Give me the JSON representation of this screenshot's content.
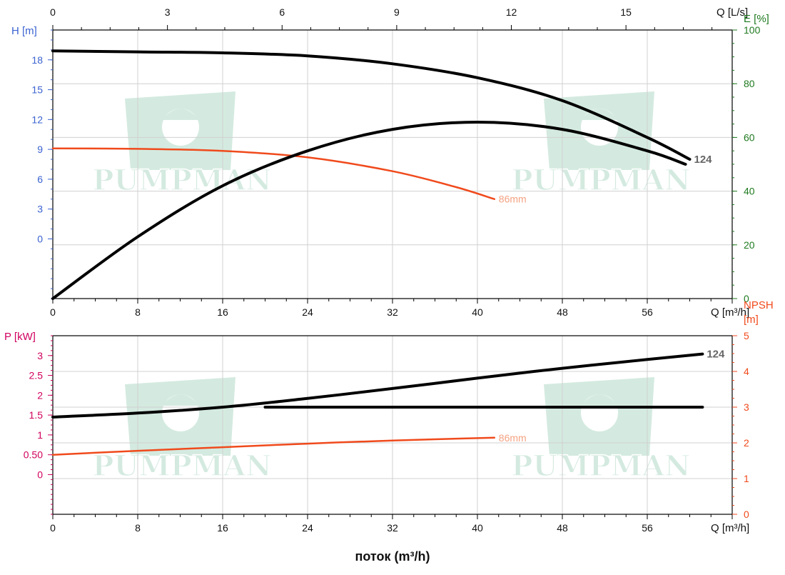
{
  "chart_data": [
    {
      "type": "line",
      "panel": "head-efficiency",
      "x_unit_label": "Q [m³/h]",
      "x_ticks": [
        "0",
        "8",
        "16",
        "24",
        "32",
        "40",
        "48",
        "56"
      ],
      "xlim": [
        0,
        64
      ],
      "top_axis": {
        "label": "Q [L/s]",
        "ticks": [
          "0",
          "3",
          "6",
          "9",
          "12",
          "15"
        ],
        "lim": [
          0,
          17.78
        ]
      },
      "left_axis": {
        "label": "H [m]",
        "ticks": [
          "0",
          "3",
          "6",
          "9",
          "12",
          "15",
          "18"
        ],
        "lim": [
          -6,
          21
        ],
        "color": "#3b63d1"
      },
      "right_axis": {
        "label": "E [%]",
        "ticks": [
          "0",
          "20",
          "40",
          "60",
          "80",
          "100"
        ],
        "lim": [
          0,
          100
        ],
        "color": "#1f7a1f"
      },
      "grid": true,
      "series": [
        {
          "name": "124",
          "kind": "H",
          "axis": "left",
          "color": "#000000",
          "x": [
            0,
            8,
            16,
            24,
            32,
            40,
            48,
            56,
            60
          ],
          "y": [
            18.9,
            18.8,
            18.7,
            18.4,
            17.6,
            16.2,
            13.9,
            10.2,
            8.0
          ]
        },
        {
          "name": "86mm",
          "kind": "H",
          "axis": "left",
          "color": "#f04a1c",
          "x": [
            0,
            8,
            16,
            24,
            32,
            38,
            41.6
          ],
          "y": [
            9.1,
            9.05,
            8.85,
            8.2,
            6.8,
            5.2,
            4.0
          ]
        },
        {
          "name": "",
          "kind": "E",
          "axis": "right",
          "color": "#000000",
          "x": [
            0,
            8,
            16,
            24,
            32,
            40,
            48,
            56,
            59.6
          ],
          "y": [
            0,
            23,
            42,
            55,
            63,
            65.7,
            63,
            55,
            50
          ]
        }
      ],
      "curve_labels": [
        {
          "text": "124",
          "series": "124",
          "color": "#666666"
        },
        {
          "text": "86mm",
          "series": "86mm",
          "color": "#f4a282"
        }
      ]
    },
    {
      "type": "line",
      "panel": "power-npsh",
      "x_unit_label": "Q [m³/h]",
      "x_ticks": [
        "0",
        "8",
        "16",
        "24",
        "32",
        "40",
        "48",
        "56"
      ],
      "xlim": [
        0,
        64
      ],
      "left_axis": {
        "label": "P [kW]",
        "ticks": [
          "0",
          "0.50",
          "1",
          "1.5",
          "2",
          "2.5",
          "3"
        ],
        "tick_values": [
          0,
          0.5,
          1,
          1.5,
          2,
          2.5,
          3
        ],
        "lim": [
          -1,
          3.5
        ],
        "color": "#d1005e"
      },
      "right_axis": {
        "label_lines": [
          "NPSH",
          "[m]"
        ],
        "ticks": [
          "0",
          "1",
          "2",
          "3",
          "4",
          "5"
        ],
        "lim": [
          0,
          5
        ],
        "color": "#f04a1c"
      },
      "grid": true,
      "series": [
        {
          "name": "124",
          "kind": "P",
          "axis": "left",
          "color": "#000000",
          "x": [
            0,
            8,
            16,
            24,
            32,
            40,
            48,
            56,
            61.2
          ],
          "y": [
            1.45,
            1.55,
            1.7,
            1.92,
            2.17,
            2.43,
            2.68,
            2.9,
            3.04
          ]
        },
        {
          "name": "86mm",
          "kind": "P",
          "axis": "left",
          "color": "#f04a1c",
          "x": [
            0,
            8,
            16,
            24,
            32,
            41.6
          ],
          "y": [
            0.5,
            0.6,
            0.69,
            0.78,
            0.86,
            0.93
          ]
        },
        {
          "name": "",
          "kind": "NPSH",
          "axis": "right",
          "color": "#000000",
          "x": [
            20,
            61.2
          ],
          "y": [
            3.0,
            3.0
          ]
        }
      ],
      "curve_labels": [
        {
          "text": "124",
          "series": "124",
          "color": "#666666"
        },
        {
          "text": "86mm",
          "series": "86mm",
          "color": "#f4a282"
        }
      ]
    }
  ],
  "x_axis_title": "поток (m³/h)",
  "watermark": {
    "text": "PUMPMAN",
    "color": "#2e9c68",
    "icon": "pump-man-logo-icon"
  }
}
